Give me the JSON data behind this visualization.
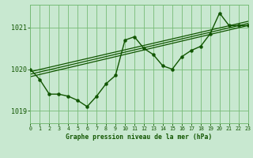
{
  "title": "Graphe pression niveau de la mer (hPa)",
  "bg_color": "#c8e8d0",
  "grid_color": "#77bb77",
  "line_color": "#115500",
  "text_color": "#115500",
  "xlim": [
    0,
    23
  ],
  "ylim": [
    1018.7,
    1021.55
  ],
  "yticks": [
    1019,
    1020,
    1021
  ],
  "xticks": [
    0,
    1,
    2,
    3,
    4,
    5,
    6,
    7,
    8,
    9,
    10,
    11,
    12,
    13,
    14,
    15,
    16,
    17,
    18,
    19,
    20,
    21,
    22,
    23
  ],
  "main_x": [
    0,
    1,
    2,
    3,
    4,
    5,
    6,
    7,
    8,
    9,
    10,
    11,
    12,
    13,
    14,
    15,
    16,
    17,
    18,
    19,
    20,
    21,
    22,
    23
  ],
  "main_y": [
    1020.0,
    1019.75,
    1019.4,
    1019.4,
    1019.35,
    1019.25,
    1019.1,
    1019.35,
    1019.65,
    1019.85,
    1020.7,
    1020.78,
    1020.5,
    1020.35,
    1020.08,
    1020.0,
    1020.3,
    1020.45,
    1020.55,
    1020.85,
    1021.35,
    1021.05,
    1021.05,
    1021.05
  ],
  "trend_lines": [
    {
      "x": [
        0,
        23
      ],
      "y": [
        1019.82,
        1021.05
      ]
    },
    {
      "x": [
        0,
        23
      ],
      "y": [
        1019.88,
        1021.1
      ]
    },
    {
      "x": [
        0,
        23
      ],
      "y": [
        1019.94,
        1021.15
      ]
    }
  ]
}
